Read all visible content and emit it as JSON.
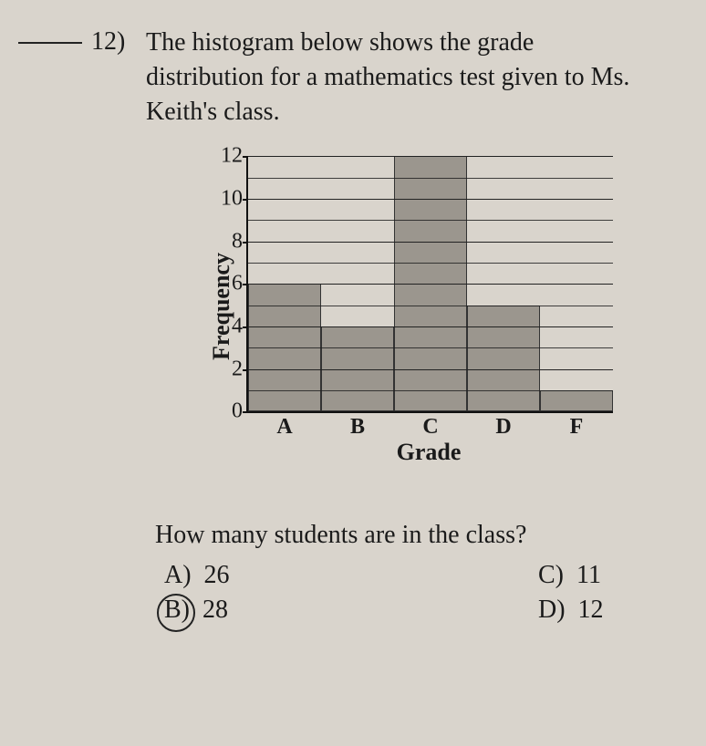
{
  "question_number": "12)",
  "prompt": "The histogram below shows the grade distribution for a mathematics test given to Ms. Keith's class.",
  "chart": {
    "type": "histogram",
    "ylabel": "Frequency",
    "xlabel": "Grade",
    "ylim": [
      0,
      12
    ],
    "ytick_step": 2,
    "yticks": [
      0,
      2,
      4,
      6,
      8,
      10,
      12
    ],
    "categories": [
      "A",
      "B",
      "C",
      "D",
      "F"
    ],
    "values": [
      6,
      4,
      12,
      5,
      1
    ],
    "bar_color": "#9b968e",
    "bar_border_color": "#333333",
    "grid_color": "#222222",
    "axis_color": "#111111",
    "background_color": "#d9d4cc",
    "label_fontsize": 26,
    "tick_fontsize": 24
  },
  "sub_question": "How many students are in the class?",
  "answers": {
    "A": {
      "letter": "A)",
      "text": "26"
    },
    "B": {
      "letter": "B)",
      "text": "28"
    },
    "C": {
      "letter": "C)",
      "text": "11"
    },
    "D": {
      "letter": "D)",
      "text": "12"
    }
  },
  "circled_answer": "B"
}
